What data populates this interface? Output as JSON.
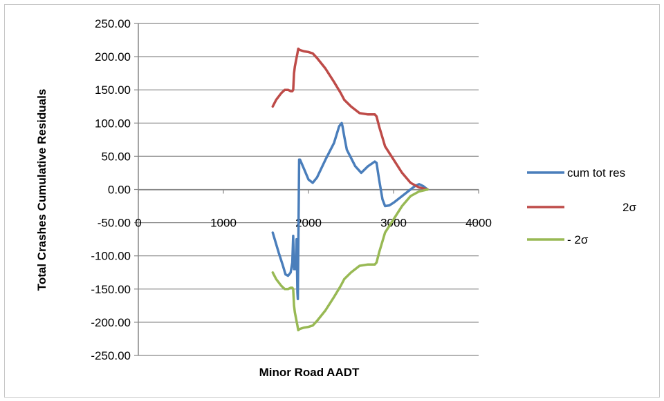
{
  "chart_data": {
    "type": "line",
    "title": "",
    "xlabel": "Minor Road AADT",
    "ylabel": "Total Crashes Cumulative  Residuals",
    "xlim": [
      0,
      4000
    ],
    "ylim": [
      -250,
      250
    ],
    "x_ticks": [
      "0",
      "1000",
      "2000",
      "3000",
      "4000"
    ],
    "y_ticks": [
      "250.00",
      "200.00",
      "150.00",
      "100.00",
      "50.00",
      "0.00",
      "-50.00",
      "-100.00",
      "-150.00",
      "-200.00",
      "-250.00"
    ],
    "grid": "horizontal",
    "legend_position": "right",
    "series": [
      {
        "name": "cum tot res",
        "color": "#4a7ebb",
        "points": [
          [
            1580,
            -65
          ],
          [
            1650,
            -95
          ],
          [
            1700,
            -115
          ],
          [
            1730,
            -128
          ],
          [
            1760,
            -130
          ],
          [
            1790,
            -125
          ],
          [
            1810,
            -110
          ],
          [
            1820,
            -70
          ],
          [
            1830,
            -120
          ],
          [
            1850,
            -120
          ],
          [
            1860,
            -75
          ],
          [
            1870,
            -155
          ],
          [
            1875,
            -165
          ],
          [
            1890,
            45
          ],
          [
            1900,
            45
          ],
          [
            1950,
            30
          ],
          [
            2000,
            15
          ],
          [
            2050,
            10
          ],
          [
            2100,
            18
          ],
          [
            2200,
            45
          ],
          [
            2300,
            70
          ],
          [
            2360,
            95
          ],
          [
            2390,
            100
          ],
          [
            2400,
            95
          ],
          [
            2420,
            80
          ],
          [
            2450,
            60
          ],
          [
            2550,
            35
          ],
          [
            2620,
            25
          ],
          [
            2700,
            35
          ],
          [
            2780,
            42
          ],
          [
            2800,
            40
          ],
          [
            2830,
            15
          ],
          [
            2870,
            -15
          ],
          [
            2900,
            -25
          ],
          [
            2950,
            -24
          ],
          [
            3000,
            -20
          ],
          [
            3100,
            -10
          ],
          [
            3200,
            0
          ],
          [
            3250,
            5
          ],
          [
            3300,
            8
          ],
          [
            3350,
            5
          ],
          [
            3400,
            0
          ]
        ]
      },
      {
        "name": "2σ",
        "color": "#be4b48",
        "points": [
          [
            1580,
            125
          ],
          [
            1620,
            135
          ],
          [
            1680,
            145
          ],
          [
            1720,
            150
          ],
          [
            1760,
            150
          ],
          [
            1790,
            148
          ],
          [
            1810,
            148
          ],
          [
            1820,
            150
          ],
          [
            1830,
            175
          ],
          [
            1840,
            185
          ],
          [
            1870,
            205
          ],
          [
            1880,
            212
          ],
          [
            1900,
            210
          ],
          [
            1950,
            208
          ],
          [
            2000,
            207
          ],
          [
            2050,
            205
          ],
          [
            2100,
            198
          ],
          [
            2200,
            182
          ],
          [
            2300,
            162
          ],
          [
            2380,
            145
          ],
          [
            2420,
            135
          ],
          [
            2500,
            125
          ],
          [
            2600,
            115
          ],
          [
            2700,
            113
          ],
          [
            2780,
            113
          ],
          [
            2800,
            110
          ],
          [
            2830,
            95
          ],
          [
            2870,
            78
          ],
          [
            2900,
            65
          ],
          [
            3000,
            45
          ],
          [
            3100,
            25
          ],
          [
            3200,
            10
          ],
          [
            3300,
            3
          ],
          [
            3400,
            0
          ]
        ]
      },
      {
        "name": "-  2σ",
        "color": "#98b954",
        "points": [
          [
            1580,
            -125
          ],
          [
            1620,
            -135
          ],
          [
            1680,
            -145
          ],
          [
            1720,
            -150
          ],
          [
            1760,
            -150
          ],
          [
            1790,
            -148
          ],
          [
            1810,
            -148
          ],
          [
            1820,
            -150
          ],
          [
            1830,
            -175
          ],
          [
            1840,
            -185
          ],
          [
            1870,
            -205
          ],
          [
            1880,
            -212
          ],
          [
            1900,
            -210
          ],
          [
            1950,
            -208
          ],
          [
            2000,
            -207
          ],
          [
            2050,
            -205
          ],
          [
            2100,
            -198
          ],
          [
            2200,
            -182
          ],
          [
            2300,
            -162
          ],
          [
            2380,
            -145
          ],
          [
            2420,
            -135
          ],
          [
            2500,
            -125
          ],
          [
            2600,
            -115
          ],
          [
            2700,
            -113
          ],
          [
            2780,
            -113
          ],
          [
            2800,
            -110
          ],
          [
            2830,
            -95
          ],
          [
            2870,
            -78
          ],
          [
            2900,
            -65
          ],
          [
            3000,
            -45
          ],
          [
            3100,
            -25
          ],
          [
            3200,
            -10
          ],
          [
            3300,
            -3
          ],
          [
            3400,
            0
          ]
        ]
      }
    ]
  }
}
